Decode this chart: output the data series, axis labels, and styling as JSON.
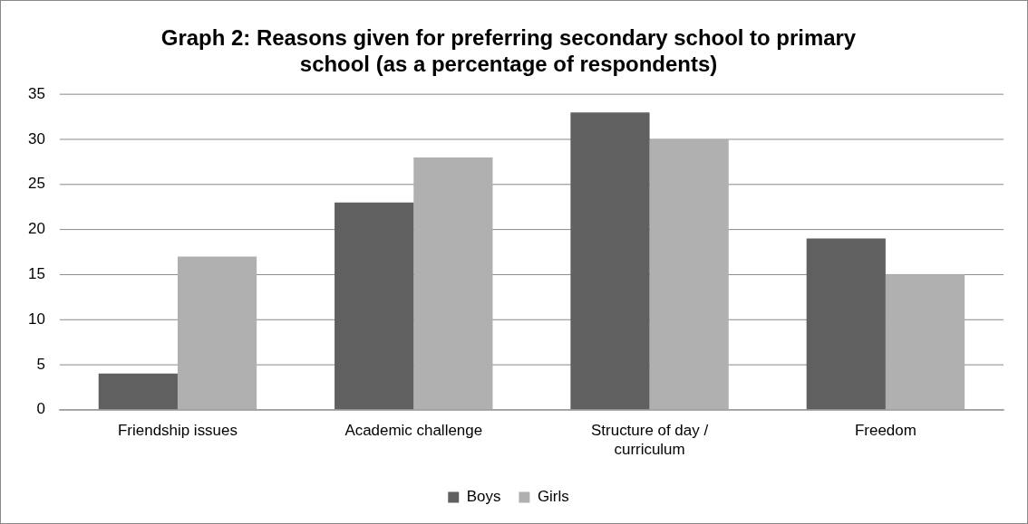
{
  "chart_data": {
    "type": "bar",
    "title": "Graph 2: Reasons given for preferring secondary school to primary school (as a percentage of respondents)",
    "categories": [
      "Friendship issues",
      "Academic challenge",
      "Structure of day / curriculum",
      "Freedom"
    ],
    "series": [
      {
        "name": "Boys",
        "color": "#606060",
        "values": [
          4,
          23,
          33,
          19
        ]
      },
      {
        "name": "Girls",
        "color": "#b0b0b0",
        "values": [
          17,
          28,
          30,
          15
        ]
      }
    ],
    "ylim": [
      0,
      35
    ],
    "yticks": [
      0,
      5,
      10,
      15,
      20,
      25,
      30,
      35
    ],
    "grid": "y",
    "legend": "bottom"
  }
}
